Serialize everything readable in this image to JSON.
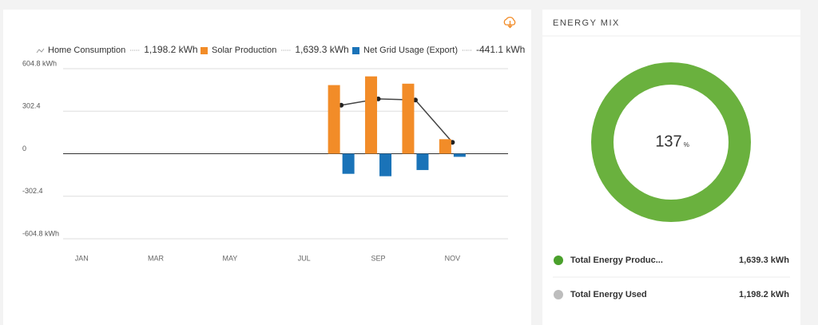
{
  "chart_data": {
    "type": "bar",
    "categories": [
      "JAN",
      null,
      "MAR",
      null,
      "MAY",
      null,
      "JUL",
      null,
      "SEP",
      null,
      "NOV",
      null
    ],
    "series": [
      {
        "name": "Home Consumption",
        "type": "line",
        "color": "#444444",
        "total_label": "1,198.2 kWh",
        "values": [
          null,
          null,
          null,
          null,
          null,
          null,
          null,
          345,
          390,
          382,
          81.2,
          null
        ]
      },
      {
        "name": "Solar Production",
        "type": "bar",
        "color": "#f28c28",
        "total_label": "1,639.3 kWh",
        "values": [
          null,
          null,
          null,
          null,
          null,
          null,
          null,
          488,
          550,
          498,
          103.3,
          null
        ]
      },
      {
        "name": "Net Grid Usage (Export)",
        "type": "bar",
        "color": "#1a73b8",
        "total_label": "-441.1 kWh",
        "values": [
          null,
          null,
          null,
          null,
          null,
          null,
          null,
          -143,
          -160,
          -116,
          -22.1,
          null
        ]
      }
    ],
    "ylim": [
      -604.8,
      604.8
    ],
    "yticks": [
      {
        "value": -604.8,
        "label": "-604.8 kWh"
      },
      -302.4,
      0,
      302.4,
      {
        "value": 604.8,
        "label": "604.8 kWh"
      }
    ],
    "grid": true
  },
  "energy_mix": {
    "title": "ENERGY MIX",
    "value": 137,
    "unit": "%",
    "color": "#6ab13e",
    "items": [
      {
        "label": "Total Energy Produc...",
        "value_label": "1,639.3 kWh",
        "color": "#4aa02c"
      },
      {
        "label": "Total Energy Used",
        "value_label": "1,198.2 kWh",
        "color": "#bdbdbd"
      }
    ]
  }
}
